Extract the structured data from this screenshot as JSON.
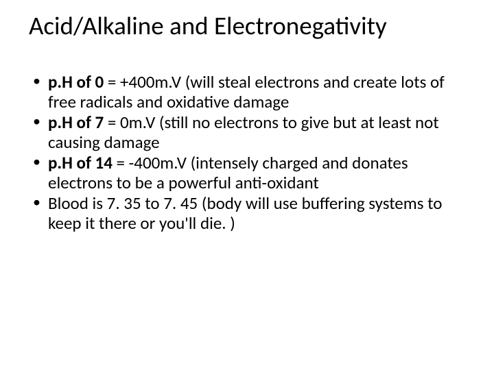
{
  "slide": {
    "background_color": "#ffffff",
    "text_color": "#000000",
    "font_family": "Calibri",
    "title": {
      "text": "Acid/Alkaline and Electronegativity",
      "fontsize": 37,
      "weight": 400,
      "align": "left"
    },
    "bullets": {
      "fontsize": 25,
      "line_height": 1.18,
      "marker": "•",
      "items": [
        {
          "bold": "p.H of 0",
          "rest": " = +400m.V (will steal electrons and create lots of free radicals and oxidative damage"
        },
        {
          "bold": "p.H of 7",
          "rest": " = 0m.V  (still no electrons to give but at least not causing damage"
        },
        {
          "bold": "p.H of 14",
          "rest": " = -400m.V (intensely charged and donates electrons to be a powerful anti-oxidant"
        },
        {
          "bold": "",
          "rest": "Blood is 7. 35 to 7. 45 (body will use buffering systems to keep it there or you'll die. )"
        }
      ]
    }
  }
}
